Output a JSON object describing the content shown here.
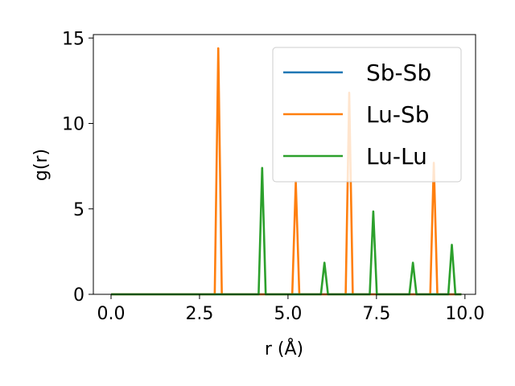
{
  "chart_data": {
    "type": "line",
    "title": "",
    "xlabel": "r (Å)",
    "ylabel": "g(r)",
    "xlim": [
      -0.5,
      10.3
    ],
    "ylim": [
      0,
      15.2
    ],
    "xticks": [
      0.0,
      2.5,
      5.0,
      7.5,
      10.0
    ],
    "xtick_labels": [
      "0.0",
      "2.5",
      "5.0",
      "7.5",
      "10.0"
    ],
    "yticks": [
      0,
      5,
      10,
      15
    ],
    "ytick_labels": [
      "0",
      "5",
      "10",
      "15"
    ],
    "grid": false,
    "legend_position": "top-right",
    "x_range": [
      0.0,
      9.9
    ],
    "series": [
      {
        "name": "Sb-Sb",
        "color": "#1f77b4",
        "peaks": []
      },
      {
        "name": "Lu-Sb",
        "color": "#ff7f0e",
        "peaks": [
          {
            "r": 3.03,
            "g": 14.4
          },
          {
            "r": 5.22,
            "g": 6.6
          },
          {
            "r": 6.73,
            "g": 11.8
          },
          {
            "r": 9.12,
            "g": 7.7
          }
        ]
      },
      {
        "name": "Lu-Lu",
        "color": "#2ca02c",
        "peaks": [
          {
            "r": 4.27,
            "g": 7.4
          },
          {
            "r": 6.03,
            "g": 1.85
          },
          {
            "r": 7.41,
            "g": 4.85
          },
          {
            "r": 8.53,
            "g": 1.85
          },
          {
            "r": 9.63,
            "g": 2.9
          }
        ]
      }
    ]
  }
}
